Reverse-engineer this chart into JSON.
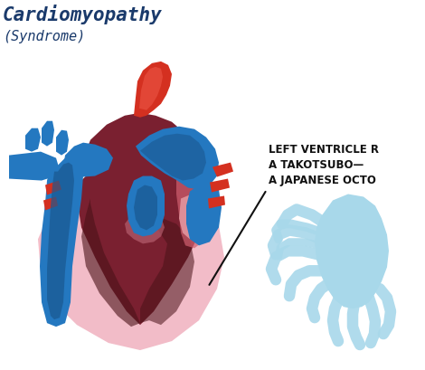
{
  "title_line1": "Cardiomyopathy",
  "title_line2": "(Syndrome)",
  "annotation_line1": "LEFT VENTRICLE R",
  "annotation_line2": "A TAKOTSUBO—",
  "annotation_line3": "A JAPANESE OCTO",
  "bg_color": "#ffffff",
  "title_color": "#1a3a6b",
  "heart_outer_color": "#f2bcc8",
  "heart_body_color": "#7a2030",
  "heart_dark_color": "#5a1820",
  "heart_mid_color": "#8b3040",
  "red_bright": "#d43020",
  "red_mid": "#c04040",
  "blue_bright": "#2478c0",
  "blue_mid": "#1a5890",
  "blue_dark": "#143060",
  "pink_light": "#f0a8b0",
  "salmon": "#e07060",
  "octopus_color": "#a8d8ea",
  "annotation_color": "#111111",
  "arrow_color": "#111111"
}
